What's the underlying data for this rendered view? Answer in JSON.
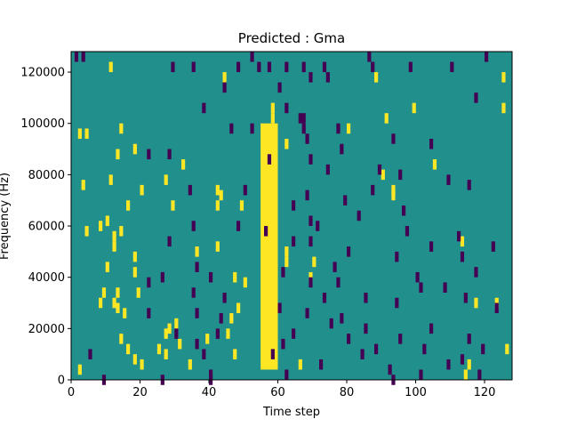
{
  "chart_data": {
    "type": "heatmap",
    "title": "Predicted : Gma",
    "xlabel": "Time step",
    "ylabel": "Frequency (Hz)",
    "xlim": [
      0,
      128
    ],
    "ylim": [
      0,
      128000
    ],
    "x_ticks": [
      0,
      20,
      40,
      60,
      80,
      100,
      120
    ],
    "y_ticks": [
      0,
      20000,
      40000,
      60000,
      80000,
      100000,
      120000
    ],
    "y_tick_labels": [
      "0",
      "20000",
      "40000",
      "60000",
      "80000",
      "100000",
      "120000"
    ],
    "grid": false,
    "colormap": "viridis",
    "colors": {
      "background": "#21908d",
      "high": "#fde725",
      "low": "#440154"
    },
    "bright_band": {
      "x": [
        55,
        60
      ],
      "y": [
        4000,
        100000
      ]
    },
    "yellow_cells": [
      [
        11,
        124000
      ],
      [
        44,
        120000
      ],
      [
        88,
        120000
      ],
      [
        125,
        120000
      ],
      [
        58,
        108000
      ],
      [
        99,
        108000
      ],
      [
        125,
        108000
      ],
      [
        58,
        104000
      ],
      [
        91,
        104000
      ],
      [
        14,
        100000
      ],
      [
        80,
        100000
      ],
      [
        2,
        98000
      ],
      [
        4,
        98000
      ],
      [
        62,
        94000
      ],
      [
        18,
        92000
      ],
      [
        13,
        90000
      ],
      [
        32,
        86000
      ],
      [
        105,
        86000
      ],
      [
        90,
        82000
      ],
      [
        27,
        80000
      ],
      [
        11,
        80000
      ],
      [
        3,
        78000
      ],
      [
        20,
        76000
      ],
      [
        93,
        76000
      ],
      [
        16,
        70000
      ],
      [
        42,
        70000
      ],
      [
        49,
        70000
      ],
      [
        93,
        74000
      ],
      [
        29,
        70000
      ],
      [
        43,
        74000
      ],
      [
        42,
        76000
      ],
      [
        10,
        64000
      ],
      [
        8,
        62000
      ],
      [
        4,
        60000
      ],
      [
        14,
        60000
      ],
      [
        12,
        58000
      ],
      [
        12,
        54000
      ],
      [
        113,
        56000
      ],
      [
        42,
        54000
      ],
      [
        18,
        50000
      ],
      [
        62,
        52000
      ],
      [
        36,
        52000
      ],
      [
        62,
        48000
      ],
      [
        70,
        48000
      ],
      [
        10,
        46000
      ],
      [
        18,
        44000
      ],
      [
        69,
        42000
      ],
      [
        47,
        42000
      ],
      [
        50,
        40000
      ],
      [
        9,
        36000
      ],
      [
        13,
        36000
      ],
      [
        8,
        32000
      ],
      [
        12,
        32000
      ],
      [
        13,
        30000
      ],
      [
        48,
        30000
      ],
      [
        58,
        32000
      ],
      [
        19,
        36000
      ],
      [
        117,
        32000
      ],
      [
        123,
        32000
      ],
      [
        15,
        28000
      ],
      [
        46,
        26000
      ],
      [
        30,
        24000
      ],
      [
        28,
        22000
      ],
      [
        27,
        20000
      ],
      [
        45,
        20000
      ],
      [
        14,
        18000
      ],
      [
        39,
        18000
      ],
      [
        31,
        16000
      ],
      [
        16,
        14000
      ],
      [
        27,
        12000
      ],
      [
        47,
        12000
      ],
      [
        18,
        10000
      ],
      [
        20,
        8000
      ],
      [
        34,
        8000
      ],
      [
        66,
        8000
      ],
      [
        115,
        8000
      ],
      [
        2,
        6000
      ],
      [
        25,
        14000
      ],
      [
        126,
        14000
      ],
      [
        114,
        4000
      ]
    ],
    "dark_cells": [
      [
        1,
        128000
      ],
      [
        3,
        128000
      ],
      [
        52,
        128000
      ],
      [
        86,
        128000
      ],
      [
        120,
        128000
      ],
      [
        29,
        124000
      ],
      [
        35,
        124000
      ],
      [
        48,
        124000
      ],
      [
        54,
        124000
      ],
      [
        57,
        124000
      ],
      [
        62,
        124000
      ],
      [
        67,
        124000
      ],
      [
        73,
        124000
      ],
      [
        87,
        124000
      ],
      [
        98,
        124000
      ],
      [
        110,
        124000
      ],
      [
        69,
        120000
      ],
      [
        74,
        120000
      ],
      [
        44,
        116000
      ],
      [
        60,
        116000
      ],
      [
        117,
        112000
      ],
      [
        38,
        108000
      ],
      [
        62,
        108000
      ],
      [
        66,
        104000
      ],
      [
        67,
        104000
      ],
      [
        46,
        100000
      ],
      [
        52,
        100000
      ],
      [
        77,
        100000
      ],
      [
        67,
        100000
      ],
      [
        68,
        96000
      ],
      [
        78,
        92000
      ],
      [
        93,
        96000
      ],
      [
        104,
        94000
      ],
      [
        22,
        90000
      ],
      [
        28,
        90000
      ],
      [
        69,
        88000
      ],
      [
        57,
        88000
      ],
      [
        74,
        84000
      ],
      [
        89,
        84000
      ],
      [
        95,
        82000
      ],
      [
        109,
        80000
      ],
      [
        115,
        78000
      ],
      [
        34,
        76000
      ],
      [
        50,
        76000
      ],
      [
        87,
        76000
      ],
      [
        68,
        74000
      ],
      [
        64,
        70000
      ],
      [
        79,
        72000
      ],
      [
        96,
        68000
      ],
      [
        83,
        66000
      ],
      [
        69,
        64000
      ],
      [
        71,
        62000
      ],
      [
        35,
        62000
      ],
      [
        48,
        62000
      ],
      [
        56,
        60000
      ],
      [
        97,
        60000
      ],
      [
        112,
        58000
      ],
      [
        28,
        56000
      ],
      [
        64,
        56000
      ],
      [
        69,
        56000
      ],
      [
        80,
        52000
      ],
      [
        94,
        50000
      ],
      [
        104,
        54000
      ],
      [
        113,
        50000
      ],
      [
        122,
        54000
      ],
      [
        36,
        46000
      ],
      [
        61,
        44000
      ],
      [
        76,
        46000
      ],
      [
        117,
        44000
      ],
      [
        22,
        40000
      ],
      [
        26,
        42000
      ],
      [
        40,
        42000
      ],
      [
        69,
        40000
      ],
      [
        77,
        40000
      ],
      [
        100,
        42000
      ],
      [
        101,
        38000
      ],
      [
        108,
        38000
      ],
      [
        35,
        36000
      ],
      [
        44,
        34000
      ],
      [
        73,
        34000
      ],
      [
        85,
        34000
      ],
      [
        94,
        32000
      ],
      [
        114,
        34000
      ],
      [
        123,
        30000
      ],
      [
        60,
        30000
      ],
      [
        22,
        28000
      ],
      [
        36,
        28000
      ],
      [
        43,
        26000
      ],
      [
        68,
        28000
      ],
      [
        75,
        24000
      ],
      [
        78,
        26000
      ],
      [
        85,
        22000
      ],
      [
        104,
        22000
      ],
      [
        30,
        20000
      ],
      [
        42,
        20000
      ],
      [
        64,
        20000
      ],
      [
        80,
        18000
      ],
      [
        95,
        18000
      ],
      [
        115,
        18000
      ],
      [
        36,
        16000
      ],
      [
        61,
        16000
      ],
      [
        88,
        14000
      ],
      [
        102,
        14000
      ],
      [
        119,
        14000
      ],
      [
        5,
        12000
      ],
      [
        38,
        12000
      ],
      [
        58,
        12000
      ],
      [
        84,
        12000
      ],
      [
        113,
        10000
      ],
      [
        109,
        8000
      ],
      [
        72,
        8000
      ],
      [
        92,
        6000
      ],
      [
        40,
        4000
      ],
      [
        62,
        4000
      ],
      [
        101,
        4000
      ],
      [
        118,
        4000
      ],
      [
        9,
        2000
      ],
      [
        26,
        2000
      ],
      [
        40,
        2000
      ],
      [
        93,
        2000
      ]
    ]
  }
}
